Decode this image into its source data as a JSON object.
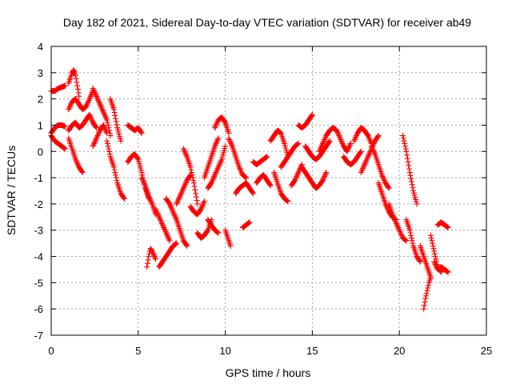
{
  "chart_data": {
    "type": "scatter",
    "title": "Day 182 of 2021, Sidereal Day-to-day VTEC variation (SDTVAR) for receiver ab49",
    "xlabel": "GPS time / hours",
    "ylabel": "SDTVAR / TECUs",
    "xlim": [
      0,
      25
    ],
    "ylim": [
      -7,
      4
    ],
    "xticks": [
      0,
      5,
      10,
      15,
      20,
      25
    ],
    "yticks": [
      4,
      3,
      2,
      1,
      0,
      -1,
      -2,
      -3,
      -4,
      -5,
      -6,
      -7
    ],
    "xtick_labels": [
      "0",
      "5",
      "10",
      "15",
      "20",
      "25"
    ],
    "ytick_labels": [
      "4",
      "3",
      "2",
      "1",
      "0",
      "-1",
      "-2",
      "-3",
      "-4",
      "-5",
      "-6",
      "-7"
    ],
    "grid": true,
    "marker": "+",
    "series": [
      {
        "name": "SDTVAR",
        "color": "#ff0000",
        "tracks": [
          {
            "x": [
              0.0,
              0.2,
              0.4,
              0.6,
              0.8
            ],
            "y": [
              2.3,
              2.3,
              2.4,
              2.45,
              2.5
            ]
          },
          {
            "x": [
              0.0,
              0.2,
              0.4,
              0.6,
              0.8
            ],
            "y": [
              0.7,
              0.9,
              1.0,
              1.0,
              0.95
            ]
          },
          {
            "x": [
              0.0,
              0.2,
              0.4,
              0.6,
              0.8
            ],
            "y": [
              0.6,
              0.4,
              0.3,
              0.2,
              0.1
            ]
          },
          {
            "x": [
              1.0,
              1.1,
              1.2,
              1.3,
              1.4,
              1.5,
              1.6
            ],
            "y": [
              2.6,
              2.8,
              3.0,
              3.1,
              2.9,
              2.5,
              2.1
            ]
          },
          {
            "x": [
              1.0,
              1.2,
              1.4,
              1.6,
              1.8,
              2.0,
              2.2,
              2.4
            ],
            "y": [
              1.6,
              1.9,
              2.0,
              1.8,
              1.6,
              1.7,
              2.0,
              2.3
            ]
          },
          {
            "x": [
              1.0,
              1.2,
              1.4,
              1.6,
              1.8,
              2.0,
              2.2,
              2.4,
              2.6
            ],
            "y": [
              0.8,
              1.0,
              1.1,
              0.9,
              1.0,
              1.2,
              1.4,
              1.1,
              0.9
            ]
          },
          {
            "x": [
              1.0,
              1.2,
              1.4,
              1.6,
              1.8
            ],
            "y": [
              0.5,
              0.1,
              -0.3,
              -0.6,
              -0.8
            ]
          },
          {
            "x": [
              2.4,
              2.6,
              2.8,
              3.0,
              3.2,
              3.4
            ],
            "y": [
              2.4,
              2.1,
              1.8,
              1.5,
              1.2,
              0.6
            ]
          },
          {
            "x": [
              2.4,
              2.6,
              2.8,
              3.0,
              3.2
            ],
            "y": [
              0.2,
              0.5,
              0.8,
              1.0,
              0.7
            ]
          },
          {
            "x": [
              3.2,
              3.4,
              3.6,
              3.8,
              4.0,
              4.2
            ],
            "y": [
              0.4,
              -0.2,
              -0.6,
              -1.2,
              -1.6,
              -1.8
            ]
          },
          {
            "x": [
              3.4,
              3.6,
              3.8,
              4.0
            ],
            "y": [
              2.0,
              1.6,
              0.9,
              0.4
            ]
          },
          {
            "x": [
              4.4,
              4.6,
              4.8,
              5.0,
              5.2
            ],
            "y": [
              1.0,
              0.9,
              0.8,
              0.9,
              0.7
            ]
          },
          {
            "x": [
              4.4,
              4.6,
              4.8,
              5.0,
              5.2,
              5.4,
              5.6
            ],
            "y": [
              -0.4,
              -0.2,
              -0.1,
              -0.3,
              -0.8,
              -1.4,
              -1.8
            ]
          },
          {
            "x": [
              5.2,
              5.4,
              5.6,
              5.8,
              6.0
            ],
            "y": [
              -1.0,
              -1.3,
              -1.7,
              -2.0,
              -2.4
            ]
          },
          {
            "x": [
              5.5,
              5.6,
              5.7,
              5.8,
              6.0
            ],
            "y": [
              -4.4,
              -4.0,
              -3.7,
              -3.8,
              -4.1
            ]
          },
          {
            "x": [
              6.0,
              6.2,
              6.4,
              6.6,
              6.8
            ],
            "y": [
              -2.2,
              -2.5,
              -2.8,
              -3.1,
              -3.4
            ]
          },
          {
            "x": [
              6.2,
              6.4,
              6.6,
              6.8,
              7.0,
              7.2
            ],
            "y": [
              -4.4,
              -4.2,
              -4.0,
              -3.8,
              -3.6,
              -3.5
            ]
          },
          {
            "x": [
              6.6,
              6.8,
              7.0,
              7.2,
              7.4,
              7.6,
              7.8
            ],
            "y": [
              -1.8,
              -2.0,
              -2.3,
              -2.6,
              -3.0,
              -3.4,
              -3.6
            ]
          },
          {
            "x": [
              7.2,
              7.4,
              7.6,
              7.8,
              8.0
            ],
            "y": [
              -2.0,
              -1.7,
              -1.4,
              -1.1,
              -0.9
            ]
          },
          {
            "x": [
              7.6,
              7.8,
              8.0,
              8.2,
              8.4
            ],
            "y": [
              0.1,
              -0.2,
              -0.6,
              -1.2,
              -2.0
            ]
          },
          {
            "x": [
              8.0,
              8.2,
              8.4,
              8.6,
              8.8
            ],
            "y": [
              -2.1,
              -2.3,
              -2.4,
              -2.2,
              -1.9
            ]
          },
          {
            "x": [
              8.4,
              8.6,
              8.8,
              9.0,
              9.2
            ],
            "y": [
              -3.1,
              -3.3,
              -3.2,
              -3.0,
              -2.6
            ]
          },
          {
            "x": [
              8.8,
              9.0,
              9.2,
              9.4,
              9.6
            ],
            "y": [
              -1.0,
              -0.6,
              -0.2,
              0.2,
              0.5
            ]
          },
          {
            "x": [
              9.0,
              9.2,
              9.4,
              9.6,
              9.8,
              10.0
            ],
            "y": [
              -1.4,
              -1.2,
              -0.9,
              -0.6,
              -0.3,
              0.2
            ]
          },
          {
            "x": [
              9.4,
              9.6,
              9.8,
              10.0,
              10.2
            ],
            "y": [
              0.9,
              1.2,
              1.3,
              1.1,
              0.7
            ]
          },
          {
            "x": [
              9.0,
              9.2,
              9.4,
              9.6
            ],
            "y": [
              -2.6,
              -2.8,
              -3.0,
              -3.1
            ]
          },
          {
            "x": [
              10.0,
              10.1,
              10.2,
              10.3
            ],
            "y": [
              -3.0,
              -3.2,
              -3.4,
              -3.6
            ]
          },
          {
            "x": [
              10.2,
              10.4,
              10.6,
              10.8,
              11.0,
              11.2
            ],
            "y": [
              0.5,
              0.2,
              -0.2,
              -0.6,
              -0.9,
              -1.0
            ]
          },
          {
            "x": [
              10.6,
              10.8,
              11.0,
              11.2,
              11.4,
              11.6
            ],
            "y": [
              -1.6,
              -1.4,
              -1.3,
              -1.2,
              -1.4,
              -1.6
            ]
          },
          {
            "x": [
              11.0,
              11.2,
              11.4
            ],
            "y": [
              -2.9,
              -2.8,
              -2.7
            ]
          },
          {
            "x": [
              11.6,
              11.8,
              12.0,
              12.2,
              12.4
            ],
            "y": [
              -0.4,
              -0.5,
              -0.4,
              -0.3,
              -0.2
            ]
          },
          {
            "x": [
              11.8,
              12.0,
              12.2,
              12.4,
              12.6
            ],
            "y": [
              -1.2,
              -1.0,
              -0.9,
              -1.1,
              -1.3
            ]
          },
          {
            "x": [
              12.6,
              12.8,
              13.0,
              13.2,
              13.4,
              13.6
            ],
            "y": [
              0.4,
              0.6,
              0.8,
              0.7,
              0.3,
              -0.2
            ]
          },
          {
            "x": [
              12.8,
              13.0,
              13.2,
              13.4,
              13.6
            ],
            "y": [
              -0.8,
              -1.2,
              -1.6,
              -1.8,
              -1.9
            ]
          },
          {
            "x": [
              13.2,
              13.4,
              13.6,
              13.8,
              14.0,
              14.2
            ],
            "y": [
              -0.6,
              -0.4,
              -0.2,
              0.0,
              0.2,
              0.3
            ]
          },
          {
            "x": [
              13.8,
              14.0,
              14.2,
              14.4
            ],
            "y": [
              -1.3,
              -1.1,
              -0.8,
              -0.5
            ]
          },
          {
            "x": [
              14.2,
              14.4,
              14.6,
              14.8,
              15.0
            ],
            "y": [
              1.0,
              0.9,
              1.0,
              1.2,
              1.4
            ]
          },
          {
            "x": [
              14.6,
              14.8,
              15.0,
              15.2,
              15.4,
              15.6,
              15.8,
              16.0
            ],
            "y": [
              0.2,
              0.0,
              -0.2,
              -0.3,
              -0.2,
              0.0,
              0.2,
              0.4
            ]
          },
          {
            "x": [
              14.4,
              14.6,
              14.8,
              15.0,
              15.2,
              15.4,
              15.6,
              15.8
            ],
            "y": [
              -0.6,
              -0.8,
              -1.0,
              -1.2,
              -1.4,
              -1.3,
              -1.1,
              -0.8
            ]
          },
          {
            "x": [
              15.4,
              15.6,
              15.8,
              16.0,
              16.2,
              16.4
            ],
            "y": [
              0.0,
              0.3,
              0.6,
              0.8,
              0.9,
              0.8
            ]
          },
          {
            "x": [
              16.4,
              16.6,
              16.8,
              17.0,
              17.2
            ],
            "y": [
              0.8,
              0.5,
              0.2,
              0.0,
              0.3
            ]
          },
          {
            "x": [
              16.8,
              17.0,
              17.2,
              17.4,
              17.6,
              17.8
            ],
            "y": [
              -0.2,
              -0.4,
              -0.5,
              -0.4,
              -0.2,
              0.0
            ]
          },
          {
            "x": [
              17.4,
              17.6,
              17.8,
              18.0,
              18.2,
              18.4
            ],
            "y": [
              0.4,
              0.7,
              0.9,
              0.8,
              0.6,
              0.3
            ]
          },
          {
            "x": [
              17.8,
              18.0,
              18.2,
              18.4,
              18.6,
              18.8
            ],
            "y": [
              -0.8,
              -0.5,
              -0.2,
              0.1,
              0.4,
              0.6
            ]
          },
          {
            "x": [
              18.4,
              18.6,
              18.8,
              19.0,
              19.2,
              19.4
            ],
            "y": [
              0.2,
              -0.1,
              -0.5,
              -0.9,
              -1.2,
              -1.4
            ]
          },
          {
            "x": [
              18.8,
              19.0,
              19.2,
              19.4,
              19.6,
              19.8
            ],
            "y": [
              -1.2,
              -1.6,
              -2.0,
              -2.3,
              -2.5,
              -2.6
            ]
          },
          {
            "x": [
              19.4,
              19.6,
              19.8,
              20.0,
              20.2,
              20.4
            ],
            "y": [
              -2.0,
              -2.4,
              -2.7,
              -3.0,
              -3.3,
              -3.4
            ]
          },
          {
            "x": [
              20.2,
              20.4,
              20.6,
              20.8,
              21.0
            ],
            "y": [
              0.6,
              0.0,
              -0.8,
              -1.5,
              -2.0
            ]
          },
          {
            "x": [
              20.4,
              20.6,
              20.8,
              21.0,
              21.2
            ],
            "y": [
              -2.6,
              -3.0,
              -3.6,
              -4.0,
              -4.2
            ]
          },
          {
            "x": [
              21.2,
              21.4,
              21.6,
              21.8
            ],
            "y": [
              -3.6,
              -4.0,
              -4.4,
              -4.8
            ]
          },
          {
            "x": [
              21.4,
              21.5,
              21.6,
              21.7,
              21.8
            ],
            "y": [
              -6.0,
              -5.6,
              -5.3,
              -5.0,
              -4.8
            ]
          },
          {
            "x": [
              21.8,
              22.0,
              22.2,
              22.4
            ],
            "y": [
              -3.2,
              -3.8,
              -4.4,
              -4.6
            ]
          },
          {
            "x": [
              22.0,
              22.2,
              22.4,
              22.6,
              22.8
            ],
            "y": [
              -4.2,
              -4.5,
              -4.4,
              -4.5,
              -4.6
            ]
          },
          {
            "x": [
              22.2,
              22.4,
              22.6,
              22.8
            ],
            "y": [
              -2.8,
              -2.7,
              -2.8,
              -2.9
            ]
          }
        ]
      }
    ]
  }
}
